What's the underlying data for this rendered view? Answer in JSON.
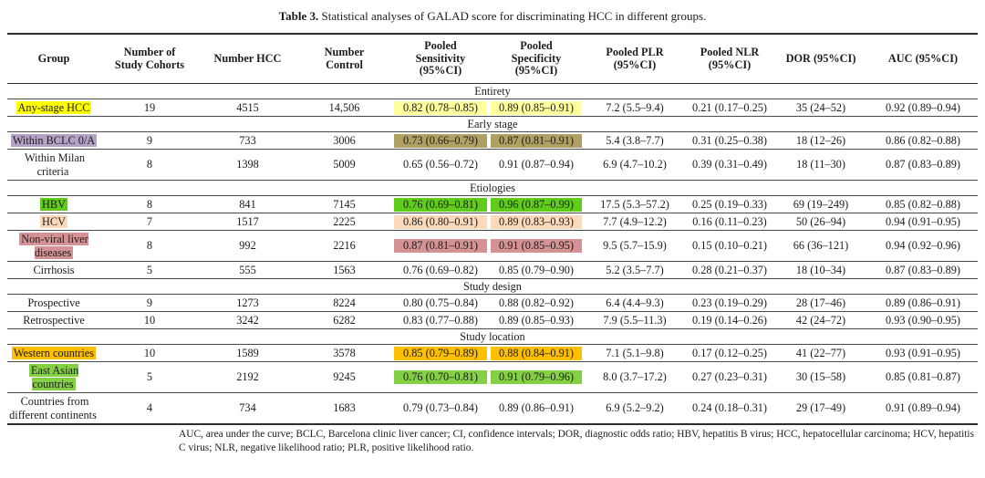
{
  "page": {
    "title_prefix": "Table 3.",
    "title_rest": " Statistical analyses of GALAD score for discriminating HCC in different groups.",
    "footnote": "AUC, area under the curve; BCLC, Barcelona clinic liver cancer; CI, confidence intervals; DOR, diagnostic odds ratio; HBV, hepatitis B virus; HCC, hepatocellular carcinoma; HCV, hepatitis C virus; NLR, negative likelihood ratio; PLR, positive likelihood ratio."
  },
  "colors": {
    "rule": "#2e2e2e",
    "text": "#1c1c1c",
    "yellow": "#ffff00",
    "pale_yellow": "#ffff9e",
    "lavender": "#b3a2c6",
    "olive": "#b0a163",
    "hbv_green": "#5fcd19",
    "peach": "#fbd9ba",
    "rose": "#d49294",
    "amber": "#fdbf00",
    "east_asian_green": "#84d044"
  },
  "table": {
    "columns": [
      "Group",
      "Number of\nStudy Cohorts",
      "Number HCC",
      "Number\nControl",
      "Pooled\nSensitivity\n(95%CI)",
      "Pooled\nSpecificity\n(95%CI)",
      "Pooled PLR\n(95%CI)",
      "Pooled NLR\n(95%CI)",
      "DOR (95%CI)",
      "AUC (95%CI)"
    ],
    "sections": [
      {
        "label": "Entirety",
        "rows": [
          {
            "group": "Any-stage HCC",
            "group_highlight": "#ffff00",
            "value_highlight": "#ffff9e",
            "values": [
              "19",
              "4515",
              "14,506",
              "0.82 (0.78–0.85)",
              "0.89 (0.85–0.91)",
              "7.2 (5.5–9.4)",
              "0.21 (0.17–0.25)",
              "35 (24–52)",
              "0.92 (0.89–0.94)"
            ]
          }
        ]
      },
      {
        "label": "Early stage",
        "rows": [
          {
            "group": "Within BCLC 0/A",
            "group_highlight": "#b3a2c6",
            "value_highlight": "#b0a163",
            "values": [
              "9",
              "733",
              "3006",
              "0.73 (0.66–0.79)",
              "0.87 (0.81–0.91)",
              "5.4 (3.8–7.7)",
              "0.31 (0.25–0.38)",
              "18 (12–26)",
              "0.86 (0.82–0.88)"
            ]
          },
          {
            "group": "Within Milan criteria",
            "group_highlight": null,
            "value_highlight": null,
            "values": [
              "8",
              "1398",
              "5009",
              "0.65 (0.56–0.72)",
              "0.91 (0.87–0.94)",
              "6.9 (4.7–10.2)",
              "0.39 (0.31–0.49)",
              "18 (11–30)",
              "0.87 (0.83–0.89)"
            ]
          }
        ]
      },
      {
        "label": "Etiologies",
        "rows": [
          {
            "group": "HBV",
            "group_highlight": "#5fcd19",
            "value_highlight": "#5fcd19",
            "values": [
              "8",
              "841",
              "7145",
              "0.76 (0.69–0.81)",
              "0.96 (0.87–0.99)",
              "17.5 (5.3–57.2)",
              "0.25 (0.19–0.33)",
              "69 (19–249)",
              "0.85 (0.82–0.88)"
            ]
          },
          {
            "group": "HCV",
            "group_highlight": "#fbd9ba",
            "value_highlight": "#fbd9ba",
            "values": [
              "7",
              "1517",
              "2225",
              "0.86 (0.80–0.91)",
              "0.89 (0.83–0.93)",
              "7.7 (4.9–12.2)",
              "0.16 (0.11–0.23)",
              "50 (26–94)",
              "0.94 (0.91–0.95)"
            ]
          },
          {
            "group": "Non-viral liver diseases",
            "group_highlight": "#d49294",
            "value_highlight": "#d49294",
            "values": [
              "8",
              "992",
              "2216",
              "0.87 (0.81–0.91)",
              "0.91 (0.85–0.95)",
              "9.5 (5.7–15.9)",
              "0.15 (0.10–0.21)",
              "66 (36–121)",
              "0.94 (0.92–0.96)"
            ]
          },
          {
            "group": "Cirrhosis",
            "group_highlight": null,
            "value_highlight": null,
            "values": [
              "5",
              "555",
              "1563",
              "0.76 (0.69–0.82)",
              "0.85 (0.79–0.90)",
              "5.2 (3.5–7.7)",
              "0.28 (0.21–0.37)",
              "18 (10–34)",
              "0.87 (0.83–0.89)"
            ]
          }
        ]
      },
      {
        "label": "Study design",
        "rows": [
          {
            "group": "Prospective",
            "group_highlight": null,
            "value_highlight": null,
            "values": [
              "9",
              "1273",
              "8224",
              "0.80 (0.75–0.84)",
              "0.88 (0.82–0.92)",
              "6.4 (4.4–9.3)",
              "0.23 (0.19–0.29)",
              "28 (17–46)",
              "0.89 (0.86–0.91)"
            ]
          },
          {
            "group": "Retrospective",
            "group_highlight": null,
            "value_highlight": null,
            "values": [
              "10",
              "3242",
              "6282",
              "0.83 (0.77–0.88)",
              "0.89 (0.85–0.93)",
              "7.9 (5.5–11.3)",
              "0.19 (0.14–0.26)",
              "42 (24–72)",
              "0.93 (0.90–0.95)"
            ]
          }
        ]
      },
      {
        "label": "Study location",
        "rows": [
          {
            "group": "Western countries",
            "group_highlight": "#fdbf00",
            "value_highlight": "#fdbf00",
            "values": [
              "10",
              "1589",
              "3578",
              "0.85 (0.79–0.89)",
              "0.88 (0.84–0.91)",
              "7.1 (5.1–9.8)",
              "0.17 (0.12–0.25)",
              "41 (22–77)",
              "0.93 (0.91–0.95)"
            ]
          },
          {
            "group": "East Asian countries",
            "group_highlight": "#84d044",
            "value_highlight": "#84d044",
            "values": [
              "5",
              "2192",
              "9245",
              "0.76 (0.70–0.81)",
              "0.91 (0.79–0.96)",
              "8.0 (3.7–17.2)",
              "0.27 (0.23–0.31)",
              "30 (15–58)",
              "0.85 (0.81–0.87)"
            ]
          },
          {
            "group": "Countries from different continents",
            "group_highlight": null,
            "value_highlight": null,
            "values": [
              "4",
              "734",
              "1683",
              "0.79 (0.73–0.84)",
              "0.89 (0.86–0.91)",
              "6.9 (5.2–9.2)",
              "0.24 (0.18–0.31)",
              "29 (17–49)",
              "0.91 (0.89–0.94)"
            ]
          }
        ]
      }
    ]
  }
}
